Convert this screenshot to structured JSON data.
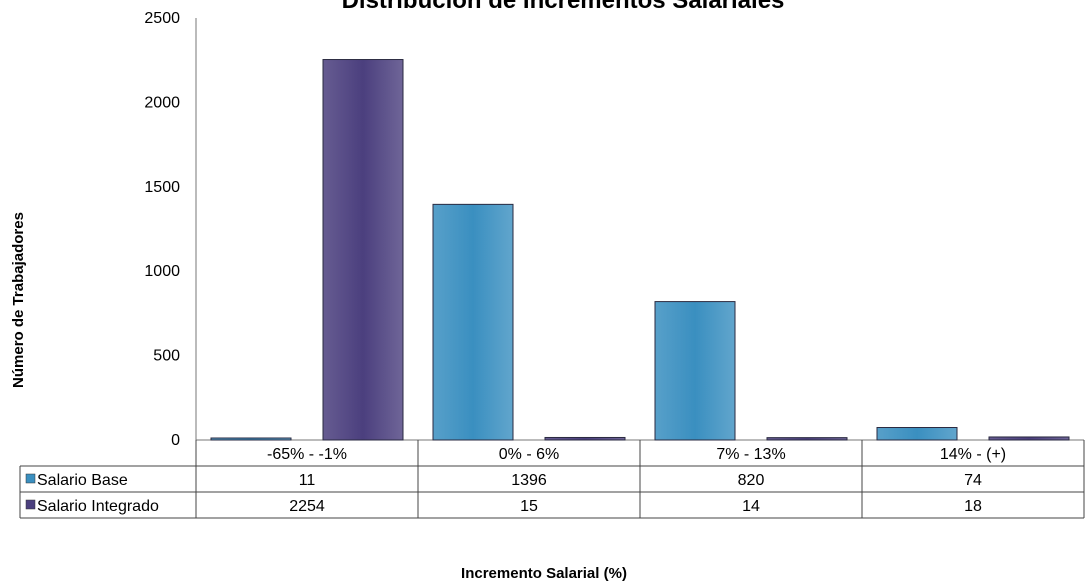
{
  "chart_data": {
    "type": "bar",
    "title": "Distribución de Incrementos Salariales",
    "xlabel": "Incremento Salarial  (%)",
    "ylabel": "Número de  Trabajadores",
    "ylim": [
      0,
      2500
    ],
    "yticks": [
      0,
      500,
      1000,
      1500,
      2000,
      2500
    ],
    "categories": [
      "-65% - -1%",
      "0% - 6%",
      "7% - 13%",
      "14% - (+)"
    ],
    "series": [
      {
        "name": "Salario Base",
        "color": "#3a8fc0",
        "values": [
          11,
          1396,
          820,
          74
        ]
      },
      {
        "name": "Salario Integrado",
        "color": "#4b3f7e",
        "values": [
          2254,
          15,
          14,
          18
        ]
      }
    ],
    "grid": false,
    "legend": "data-table"
  }
}
